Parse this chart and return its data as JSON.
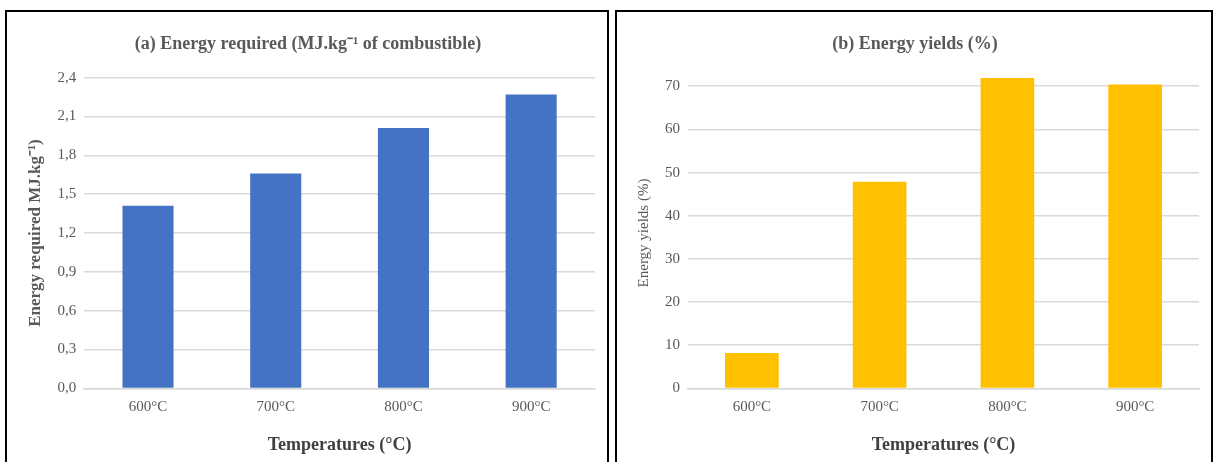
{
  "chart_data": [
    {
      "type": "bar",
      "title": "(a) Energy required (MJ.kg⁻¹ of combustible)",
      "xlabel": "Temperatures (°C)",
      "ylabel": "Energy required MJ.kg⁻¹)",
      "categories": [
        "600°C",
        "700°C",
        "800°C",
        "900°C"
      ],
      "values": [
        1.41,
        1.66,
        2.01,
        2.27
      ],
      "color": "#4472c4",
      "ylim": [
        0,
        2.4
      ],
      "yticks": [
        {
          "value": 0,
          "label": "0,0"
        },
        {
          "value": 0.3,
          "label": "0,3"
        },
        {
          "value": 0.6,
          "label": "0,6"
        },
        {
          "value": 0.9,
          "label": "0,9"
        },
        {
          "value": 1.2,
          "label": "1,2"
        },
        {
          "value": 1.5,
          "label": "1,5"
        },
        {
          "value": 1.8,
          "label": "1,8"
        },
        {
          "value": 2.1,
          "label": "2,1"
        },
        {
          "value": 2.4,
          "label": "2,4"
        }
      ],
      "grid": "y"
    },
    {
      "type": "bar",
      "title": "(b) Energy yields (%)",
      "xlabel": "Temperatures (°C)",
      "ylabel": "Energy yields (%)",
      "categories": [
        "600°C",
        "700°C",
        "800°C",
        "900°C"
      ],
      "values": [
        8.2,
        47.9,
        71.9,
        70.4
      ],
      "color": "#ffc000",
      "ylim": [
        0,
        72
      ],
      "yticks": [
        0,
        10,
        20,
        30,
        40,
        50,
        60,
        70
      ],
      "grid": "y"
    }
  ]
}
